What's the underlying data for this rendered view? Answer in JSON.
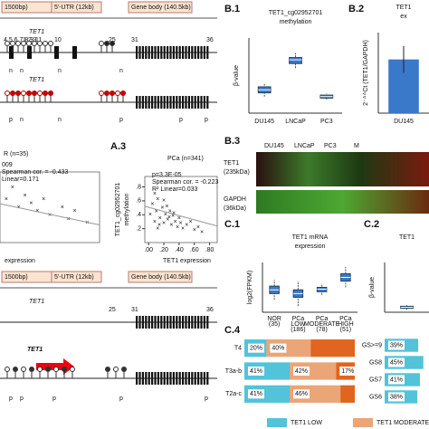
{
  "gene_top": {
    "segments": [
      "1500bp)",
      "5'-UTR (12kb)",
      "Gene body (140.5kb)"
    ],
    "gene": "TET1",
    "exon_numbers": [
      "4 5 6 7 8 9 11",
      "1 2 3",
      "10",
      "25",
      "31",
      "36"
    ],
    "row1_status": [
      "n",
      "n",
      "n",
      "n"
    ],
    "row2_gene": "TET1",
    "row2_status": [
      "p",
      "n",
      "n",
      "p",
      "p",
      "p"
    ]
  },
  "gene_bottom": {
    "segments": [
      "1500bp)",
      "5'-UTR (12kb)",
      "Gene body (140.5kb)"
    ],
    "gene": "TET1",
    "exon_numbers": [
      "25",
      "31",
      "36"
    ],
    "promoter_gene": "TET1",
    "status": [
      "p",
      "p",
      "p",
      "p",
      "p"
    ]
  },
  "panel_labels": [
    "B.1",
    "B.2",
    "A.3",
    "B.3",
    "C.1",
    "C.2",
    "C.4"
  ],
  "blot": {
    "lanes": [
      "DU145",
      "LNCaP",
      "PC3",
      "M"
    ],
    "rows": [
      [
        "TET1",
        "(235kDa)"
      ],
      [
        "GAPDH",
        "(36kDa)"
      ]
    ]
  },
  "chart_data": [
    {
      "type": "scatter",
      "title": "R (n=35)",
      "stats": [
        "009",
        "Spearman cor. = -0.433",
        "Linear=0.171"
      ],
      "x_label": "expression",
      "color": "#888888",
      "x": [
        0.05,
        0.1,
        0.15,
        0.2,
        0.25,
        0.3,
        0.35,
        0.4,
        0.5,
        0.55,
        0.6,
        0.7
      ],
      "y": [
        0.55,
        0.7,
        0.45,
        0.6,
        0.5,
        0.4,
        0.55,
        0.35,
        0.45,
        0.3,
        0.4,
        0.25
      ],
      "xlim": [
        0,
        0.8
      ],
      "ylim": [
        0,
        0.9
      ]
    },
    {
      "type": "scatter",
      "title": "PCa (n=341)",
      "stats": [
        "p=3.3E-05",
        "Spearman cor. = -0.223",
        "R² Linear=0.033"
      ],
      "y_label": [
        "TET1_cg02952701",
        "methylation"
      ],
      "x_label": "TET1 expression",
      "color": "#888888",
      "x": [
        0.02,
        0.05,
        0.08,
        0.1,
        0.12,
        0.15,
        0.18,
        0.2,
        0.22,
        0.25,
        0.28,
        0.3,
        0.32,
        0.35,
        0.38,
        0.4,
        0.42,
        0.45,
        0.5,
        0.55,
        0.6,
        0.65,
        0.7,
        0.08,
        0.14,
        0.24,
        0.33,
        0.12,
        0.2,
        0.27
      ],
      "y": [
        0.4,
        0.55,
        0.3,
        0.45,
        0.62,
        0.35,
        0.5,
        0.28,
        0.4,
        0.33,
        0.45,
        0.25,
        0.38,
        0.3,
        0.22,
        0.35,
        0.28,
        0.2,
        0.25,
        0.3,
        0.18,
        0.22,
        0.15,
        0.7,
        0.25,
        0.52,
        0.42,
        0.2,
        0.6,
        0.36
      ],
      "xlim": [
        -0.05,
        0.9
      ],
      "ylim": [
        0,
        0.95
      ],
      "xticks": [
        {
          "value": 0,
          "label": ".00"
        },
        {
          "value": 0.2,
          "label": ".20"
        },
        {
          "value": 0.4,
          "label": ".40"
        },
        {
          "value": 0.6,
          "label": ".60"
        },
        {
          "value": 0.8,
          "label": ".80"
        }
      ],
      "yticks": [
        {
          "value": 0.2,
          "label": ".2"
        },
        {
          "value": 0.4,
          "label": ".4"
        },
        {
          "value": 0.6,
          "label": ".6"
        },
        {
          "value": 0.8,
          "label": ".8"
        }
      ]
    },
    {
      "type": "box",
      "title": [
        "TET1_cg02952701",
        "methylation"
      ],
      "y_label": "β-value",
      "color": "#3a78c9",
      "categories": [
        "DU145",
        "LNCaP",
        "PC3"
      ],
      "values": [
        [
          0.22,
          0.27,
          0.31,
          0.35,
          0.4
        ],
        [
          0.6,
          0.66,
          0.71,
          0.74,
          0.8
        ],
        [
          0.18,
          0.2,
          0.22,
          0.24,
          0.26
        ]
      ],
      "ylim": [
        0,
        1
      ]
    },
    {
      "type": "bar",
      "title": [
        "TET1",
        "ex"
      ],
      "y_label": "2⁻ᐞᐞCt (TET1/GAPDH)",
      "color": "#3a78c9",
      "categories": [
        "DU145"
      ],
      "values": [
        1.0
      ],
      "errors": [
        0.25
      ],
      "ylim": [
        0,
        1.5
      ]
    },
    {
      "type": "box",
      "title": [
        "TET1 mRNA",
        "expression"
      ],
      "y_label": "log2(FPKM)",
      "color": "#3a78c9",
      "categories": [
        [
          "NOR",
          "(35)"
        ],
        [
          "PCa",
          "LOW",
          "(186)"
        ],
        [
          "PCa",
          "MODERATE",
          "(78)"
        ],
        [
          "PCa",
          "HIGH",
          "(51)"
        ]
      ],
      "values": [
        [
          2,
          3,
          3.6,
          4.2,
          5.2
        ],
        [
          1,
          2.4,
          3,
          3.6,
          5
        ],
        [
          2.8,
          3.3,
          3.7,
          4,
          4.6
        ],
        [
          4,
          5,
          5.6,
          6.2,
          7.3
        ]
      ],
      "ylim": [
        0,
        8
      ]
    },
    {
      "type": "box",
      "title": [
        "TET1"
      ],
      "y_label": "β-value",
      "color": "#3a78c9",
      "categories": [
        null
      ],
      "values": [
        [
          0.05,
          0.08,
          0.1,
          0.12,
          0.15
        ]
      ],
      "ylim": [
        0,
        1
      ]
    },
    {
      "type": "stacked_bar_h",
      "categories": [
        "T4",
        "T3a-b",
        "T2a-c"
      ],
      "xlim": [
        0,
        100
      ],
      "series": [
        {
          "name": "TET1 LOW",
          "color": "#52c3d9",
          "values": [
            20,
            41,
            41
          ],
          "value_labels": [
            "20%",
            "41%",
            "41%"
          ]
        },
        {
          "name": "TET1 MODERATE",
          "color": "#eba577",
          "values": [
            40,
            42,
            46
          ],
          "value_labels": [
            "40%",
            "42%",
            "46%"
          ]
        },
        {
          "color": "#e0651e",
          "values": [
            40,
            17,
            13
          ],
          "value_labels": [
            null,
            "17%",
            null
          ]
        }
      ]
    },
    {
      "type": "stacked_bar_h",
      "categories": [
        "GS>=9",
        "GS8",
        "GS7",
        "GS6"
      ],
      "xlim": [
        0,
        100
      ],
      "series": [
        {
          "color": "#52c3d9",
          "values": [
            39,
            45,
            41,
            38
          ],
          "value_labels": [
            "39%",
            "45%",
            "41%",
            "38%"
          ]
        }
      ]
    }
  ]
}
